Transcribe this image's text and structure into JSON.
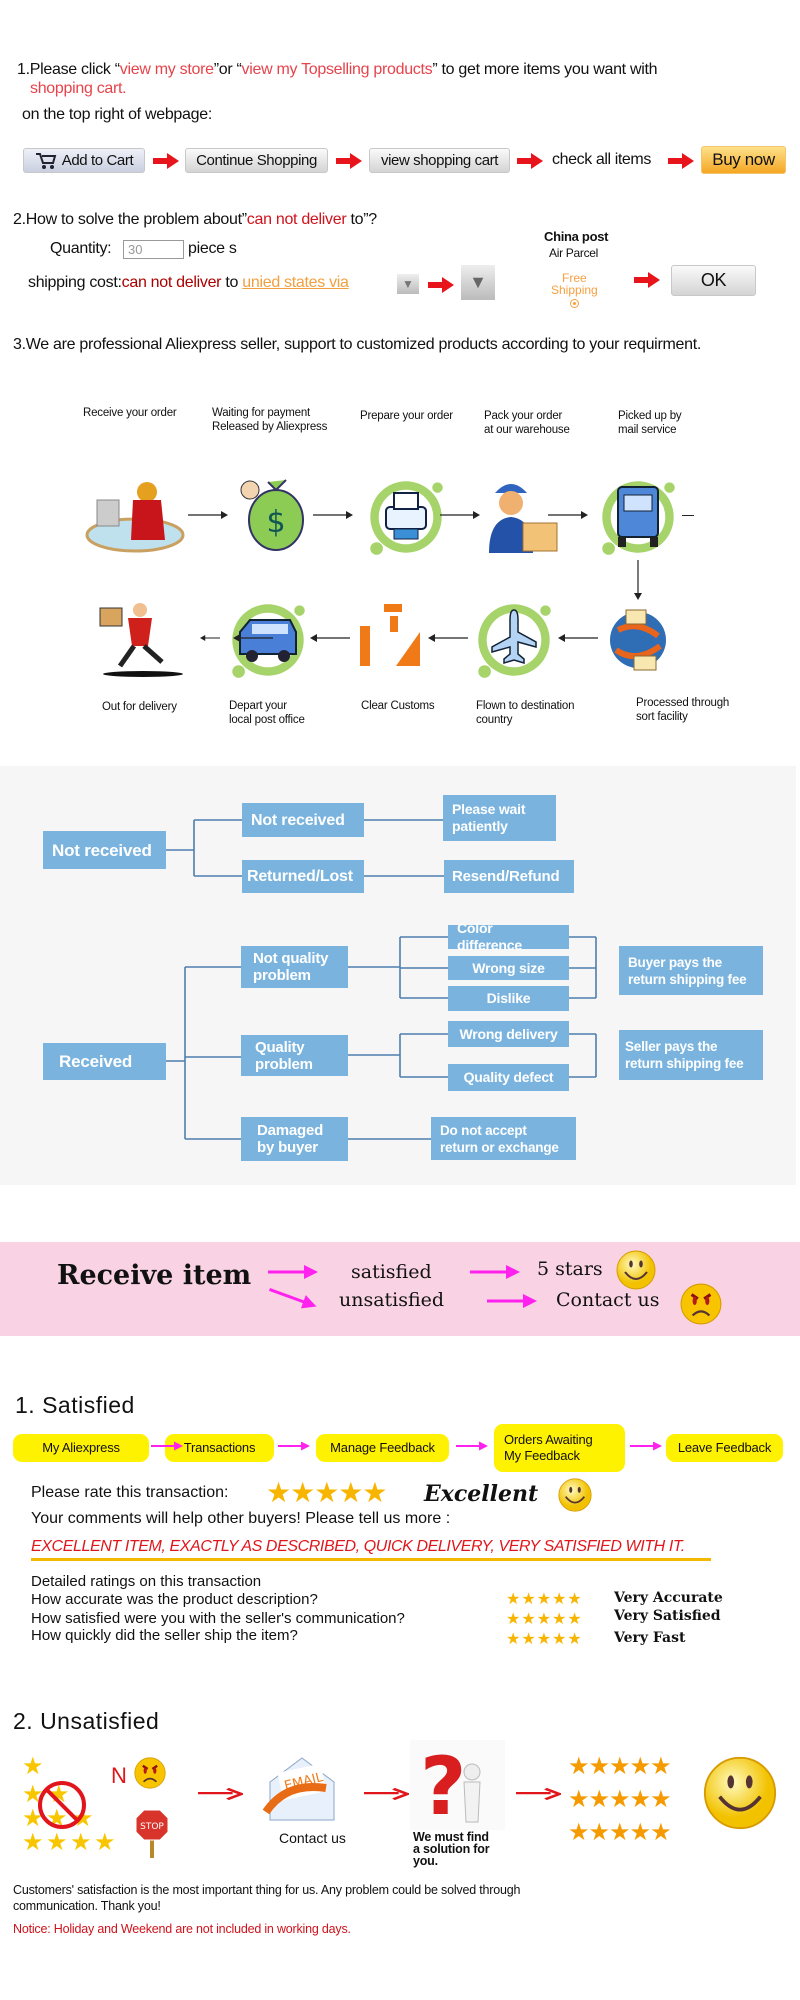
{
  "section1": {
    "prefix": "1.Please click “",
    "link1": "view my store",
    "mid": "”or “",
    "link2": "view my Topselling products",
    "suffix": "” to get more items you want with",
    "line1b": "shopping cart.",
    "line2": "on the top right of webpage:",
    "steps": [
      "Add to Cart",
      "Continue Shopping",
      "view shopping cart",
      "check all items",
      "Buy now"
    ]
  },
  "section2": {
    "heading_prefix": "2.How to solve the problem about”",
    "heading_red": "can not deliver",
    "heading_suffix": " to”?",
    "quantity_label": "Quantity:",
    "quantity_value": "30",
    "quantity_unit": "piece s",
    "shipping_label": "shipping cost:",
    "shipping_red": "can not deliver",
    "shipping_to": " to ",
    "shipping_link": "unied states via",
    "carrier": "China post",
    "service": "Air Parcel",
    "free_line1": "Free",
    "free_line2": "Shipping",
    "ok": "OK"
  },
  "section3": {
    "heading": "3.We are professional Aliexpress seller, support to customized products according to your requirment.",
    "steps_top": [
      {
        "l1": "Receive your order",
        "l2": ""
      },
      {
        "l1": "Waiting for payment",
        "l2": "Released by Aliexpress"
      },
      {
        "l1": "Prepare your order",
        "l2": ""
      },
      {
        "l1": "Pack your order",
        "l2": "at our warehouse"
      },
      {
        "l1": "Picked up by",
        "l2": "mail service"
      }
    ],
    "steps_bottom": [
      {
        "l1": "Out for delivery",
        "l2": ""
      },
      {
        "l1": "Depart your",
        "l2": "local post office"
      },
      {
        "l1": "Clear Customs",
        "l2": ""
      },
      {
        "l1": "Flown to destination",
        "l2": "country"
      },
      {
        "l1": "Processed through",
        "l2": "sort facility"
      }
    ]
  },
  "flowchart": {
    "not_received_root": "Not received",
    "not_received": "Not received",
    "please_wait": [
      "Please wait",
      "patiently"
    ],
    "returned_lost": "Returned/Lost",
    "resend_refund": "Resend/Refund",
    "received_root": "Received",
    "not_quality": [
      "Not quality",
      "problem"
    ],
    "color_difference": "Color difference",
    "wrong_size": "Wrong size",
    "dislike": "Dislike",
    "buyer_pays": [
      "Buyer pays the",
      "return shipping fee"
    ],
    "quality_problem": [
      "Quality",
      "problem"
    ],
    "wrong_delivery": "Wrong delivery",
    "quality_defect": "Quality defect",
    "seller_pays": [
      "Seller pays the",
      "return shipping fee"
    ],
    "damaged": [
      "Damaged",
      "by buyer"
    ],
    "do_not_accept": [
      "Do not accept",
      "return or exchange"
    ],
    "box_color": "#7ab4de",
    "line_color": "#4f7ead"
  },
  "banner": {
    "receive_item": "Receive item",
    "satisfied": "satisfied",
    "unsatisfied": "unsatisfied",
    "five_stars": "5 stars",
    "contact_us": "Contact us",
    "background": "#f9d3e4",
    "arrow_color": "#ff22ee"
  },
  "satisfied": {
    "heading": "1. Satisfied",
    "steps": [
      "My Aliexpress",
      "Transactions",
      "Manage Feedback",
      "Orders Awaiting",
      "My Feedback",
      "Leave Feedback"
    ],
    "rate_label": "Please rate this transaction:",
    "rating_stars": 5,
    "rating_word": "Excellent",
    "comments_label": "Your comments will help other buyers! Please tell us more :",
    "comment": "EXCELLENT ITEM, EXACTLY AS DESCRIBED, QUICK DELIVERY, VERY SATISFIED WITH IT.",
    "detailed_title": "Detailed ratings on this transaction",
    "detailed": [
      {
        "question": "How accurate was the product description?",
        "stars": 5,
        "answer": "Very Accurate"
      },
      {
        "question": "How satisfied were you with the seller's communication?",
        "stars": 5,
        "answer": "Very Satisfied"
      },
      {
        "question": "How quickly did the seller ship the item?",
        "stars": 5,
        "answer": "Very Fast"
      }
    ]
  },
  "unsatisfied": {
    "heading": "2. Unsatisfied",
    "no_letter": "N",
    "stop": "STOP",
    "email": "EMAIL",
    "contact_us": "Contact us",
    "solution": [
      "We must find",
      "a solution for",
      "you."
    ],
    "footer_line1": "Customers' satisfaction is the most important thing for us. Any problem could be solved through",
    "footer_line2": "communication. Thank you!",
    "notice": "Notice: Holiday and Weekend are not included in working days."
  }
}
